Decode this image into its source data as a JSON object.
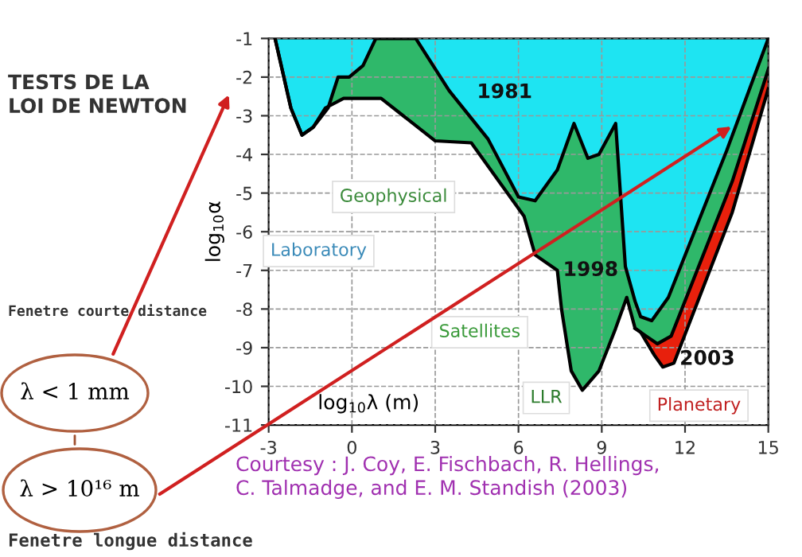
{
  "chart_data": {
    "type": "area",
    "xlabel": "log$_{10}$λ (m)",
    "ylabel": "log$_{10}$α",
    "xlim": [
      -3,
      15
    ],
    "ylim": [
      -11,
      -1
    ],
    "xticks": [
      -3,
      0,
      3,
      6,
      9,
      12,
      15
    ],
    "yticks": [
      -1,
      -2,
      -3,
      -4,
      -5,
      -6,
      -7,
      -8,
      -9,
      -10,
      -11
    ],
    "grid": true,
    "legend": false,
    "series": [
      {
        "name": "2003",
        "color": "#e8200c",
        "x": [
          10.2,
          10.4,
          10.9,
          11.2,
          11.6,
          13.7,
          15
        ],
        "values": [
          -8.5,
          -8.6,
          -9.2,
          -9.5,
          -9.4,
          -5.5,
          -2.3
        ]
      },
      {
        "name": "1998",
        "color": "#2fb86a",
        "x": [
          -2.77,
          -2.2,
          -1.8,
          -1.4,
          -0.96,
          -0.3,
          1.05,
          2.2,
          3.0,
          4.3,
          6.2,
          6.6,
          7.4,
          7.55,
          7.9,
          8.3,
          8.9,
          9.5,
          9.9,
          10.2,
          10.6,
          11.0,
          11.5,
          13.7,
          15
        ],
        "values": [
          -1,
          -2.8,
          -3.5,
          -3.3,
          -2.8,
          -2.55,
          -2.55,
          -3.2,
          -3.65,
          -3.7,
          -5.6,
          -6.6,
          -7.0,
          -8.0,
          -9.6,
          -10.1,
          -9.6,
          -8.5,
          -7.7,
          -8.5,
          -8.7,
          -8.9,
          -8.7,
          -4.7,
          -1.8
        ]
      },
      {
        "name": "1981",
        "color": "#1ee4f2",
        "x": [
          -2.77,
          -2.2,
          -1.8,
          -1.4,
          -0.86,
          -0.5,
          -0.1,
          0.4,
          0.86,
          2.3,
          3.5,
          4.9,
          6.0,
          6.6,
          7.4,
          8.0,
          8.5,
          8.9,
          9.5,
          9.85,
          10.2,
          10.4,
          10.8,
          11.4,
          13.5,
          15
        ],
        "values": [
          -1,
          -2.8,
          -3.5,
          -3.3,
          -2.8,
          -2.0,
          -2.0,
          -1.7,
          -1.0,
          -1.0,
          -2.35,
          -3.6,
          -5.1,
          -5.2,
          -4.4,
          -3.2,
          -4.1,
          -4.0,
          -3.2,
          -6.9,
          -7.8,
          -8.2,
          -8.3,
          -7.7,
          -3.9,
          -1
        ]
      }
    ],
    "annotations": [
      "TESTS DE LA\nLOI DE NEWTON",
      "Fenetre courte distance",
      "λ < 1 mm",
      "λ > 10¹⁶ m",
      "Fenetre longue distance",
      "Courtesy : J. Coy, E. Fischbach, R. Hellings,\nC. Talmadge, and E. M. Standish (2003)",
      "Geophysical",
      "Laboratory",
      "Satellites",
      "LLR",
      "Planetary"
    ]
  }
}
